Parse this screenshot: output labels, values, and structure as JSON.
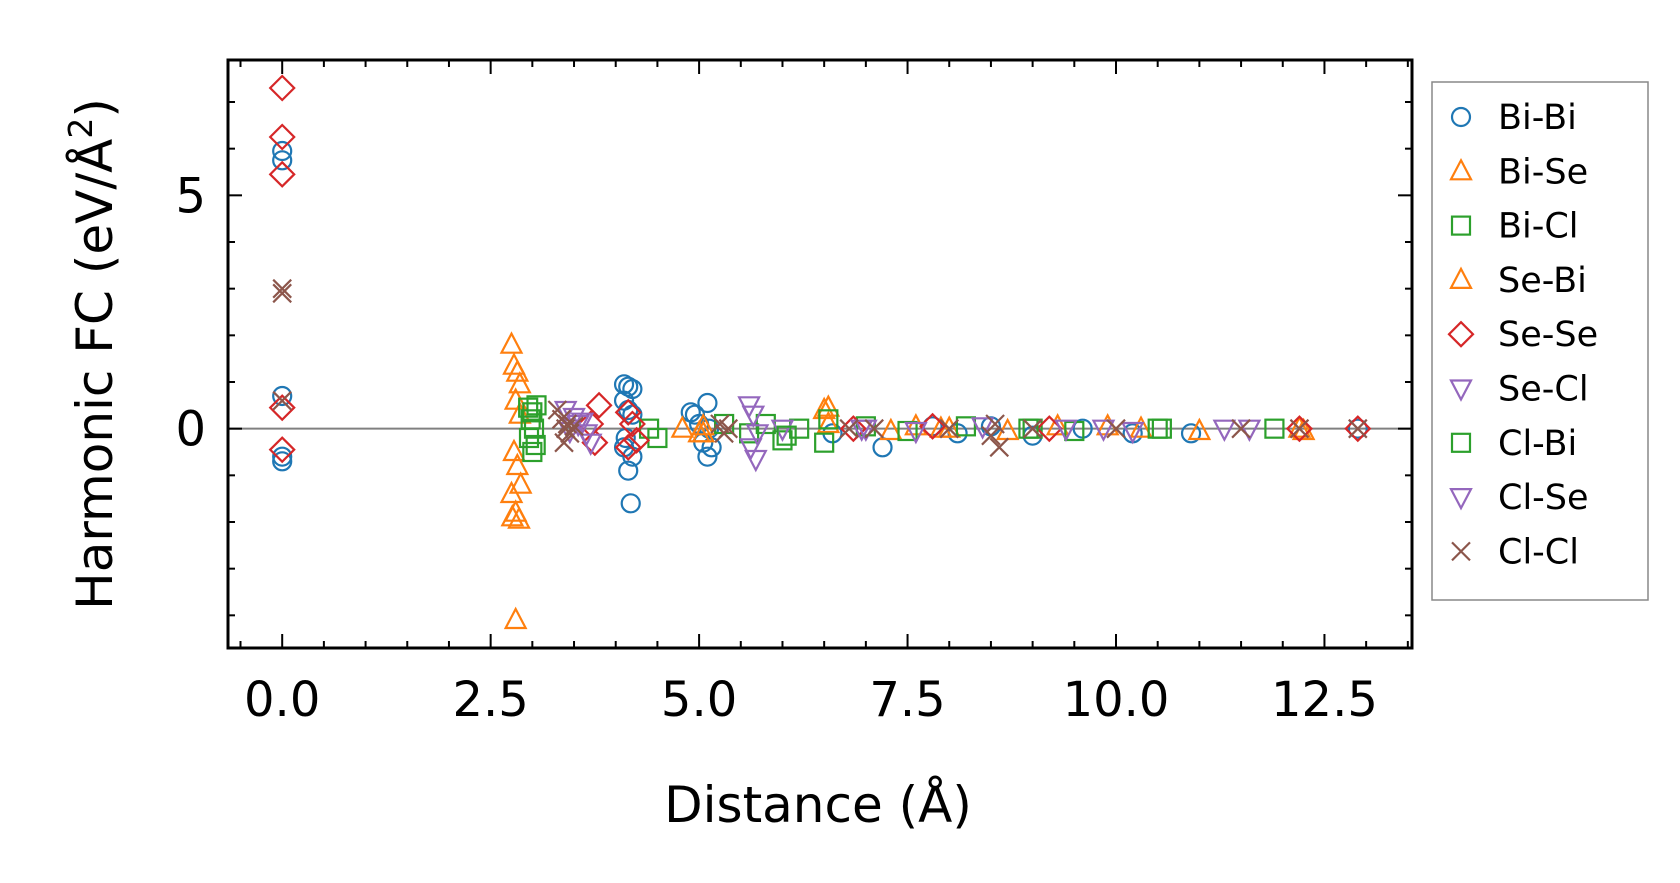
{
  "chart_data": {
    "type": "scatter",
    "xlabel": "Distance (Å)",
    "ylabel": {
      "main": "Harmonic FC (eV/Å",
      "sup": "2",
      "close": ")"
    },
    "xlim": [
      -0.65,
      13.55
    ],
    "ylim": [
      -4.7,
      7.9
    ],
    "xticks": [
      0.0,
      2.5,
      5.0,
      7.5,
      10.0,
      12.5
    ],
    "xtick_labels": [
      "0.0",
      "2.5",
      "5.0",
      "7.5",
      "10.0",
      "12.5"
    ],
    "yticks": [
      0,
      5
    ],
    "ytick_labels": [
      "0",
      "5"
    ],
    "reference_line_y": 0,
    "legend_position": "outside-right",
    "series": [
      {
        "name": "Bi-Bi",
        "marker": "circle",
        "color": "#1f77b4",
        "x": [
          0,
          0,
          0,
          0,
          0,
          4.1,
          4.15,
          4.2,
          4.1,
          4.15,
          4.2,
          4.1,
          4.2,
          4.15,
          4.12,
          4.18,
          4.9,
          4.95,
          5.0,
          5.1,
          5.15,
          5.1,
          5.05,
          5.12,
          6.6,
          7.2,
          7.8,
          8.1,
          8.5,
          9.0,
          9.6,
          10.2,
          10.9,
          12.9
        ],
        "y": [
          5.95,
          5.75,
          0.7,
          -0.7,
          -0.6,
          0.95,
          0.9,
          0.85,
          0.6,
          0.4,
          0.3,
          -0.4,
          -0.6,
          -0.9,
          -0.2,
          -1.6,
          0.35,
          0.3,
          0.1,
          0.55,
          -0.4,
          -0.6,
          -0.3,
          0.0,
          -0.1,
          -0.4,
          0.05,
          -0.1,
          0.05,
          -0.15,
          0.0,
          -0.1,
          -0.1,
          0.0
        ]
      },
      {
        "name": "Bi-Se",
        "marker": "triangle-up",
        "color": "#ff7f0e",
        "x": [
          2.75,
          2.78,
          2.82,
          2.85,
          2.8,
          2.85,
          2.78,
          2.82,
          2.86,
          2.75,
          2.8,
          2.76,
          2.84,
          2.8,
          4.8,
          5.0,
          5.05,
          6.5,
          6.55,
          7.3,
          7.6,
          8.0,
          8.7,
          9.3,
          10.3,
          11.0,
          12.2
        ],
        "y": [
          1.8,
          1.35,
          1.2,
          0.95,
          0.6,
          0.3,
          -0.5,
          -0.8,
          -1.2,
          -1.4,
          -1.8,
          -1.9,
          -1.95,
          -4.1,
          0.0,
          -0.1,
          0.05,
          0.4,
          0.1,
          -0.05,
          0.05,
          0.0,
          -0.05,
          0.05,
          0.0,
          -0.05,
          0.0
        ]
      },
      {
        "name": "Bi-Cl",
        "marker": "square",
        "color": "#2ca02c",
        "x": [
          2.95,
          3.0,
          3.05,
          2.98,
          3.02,
          2.96,
          3.04,
          3.0,
          4.4,
          4.5,
          5.3,
          5.6,
          5.8,
          6.0,
          6.2,
          6.5,
          7.0,
          7.5,
          8.2,
          9.0,
          9.5,
          10.5,
          11.9
        ],
        "y": [
          0.45,
          0.35,
          0.5,
          0.2,
          0.0,
          -0.2,
          -0.35,
          -0.5,
          0.0,
          -0.2,
          0.1,
          -0.1,
          0.1,
          -0.25,
          0.0,
          -0.3,
          0.05,
          -0.05,
          0.05,
          0.0,
          -0.05,
          0.0,
          0.0
        ]
      },
      {
        "name": "Se-Bi",
        "marker": "triangle-up",
        "color": "#ff7f0e",
        "x": [
          6.55,
          5.05,
          7.9,
          9.9,
          12.25
        ],
        "y": [
          0.45,
          -0.1,
          0.0,
          0.05,
          -0.05
        ]
      },
      {
        "name": "Se-Se",
        "marker": "diamond",
        "color": "#d62728",
        "x": [
          0,
          0,
          0,
          0,
          0,
          3.7,
          3.75,
          3.8,
          4.15,
          4.2,
          4.25,
          4.15,
          6.85,
          7.8,
          9.2,
          12.2,
          12.9
        ],
        "y": [
          7.3,
          6.25,
          5.45,
          0.45,
          -0.45,
          0.1,
          -0.3,
          0.5,
          0.35,
          0.1,
          -0.25,
          -0.4,
          0.0,
          0.05,
          0.0,
          0.0,
          0.0
        ]
      },
      {
        "name": "Se-Cl",
        "marker": "triangle-down",
        "color": "#9467bd",
        "x": [
          3.4,
          3.5,
          3.6,
          3.65,
          3.7,
          3.55,
          5.6,
          5.65,
          5.7,
          5.62,
          5.68,
          6.0,
          7.0,
          7.6,
          8.4,
          9.4,
          10.2,
          11.3
        ],
        "y": [
          0.4,
          0.25,
          0.15,
          -0.1,
          -0.3,
          0.1,
          0.5,
          0.3,
          -0.1,
          -0.4,
          -0.65,
          0.0,
          0.0,
          -0.05,
          0.05,
          0.0,
          -0.05,
          0.0
        ]
      },
      {
        "name": "Cl-Bi",
        "marker": "square",
        "color": "#2ca02c",
        "x": [
          6.05,
          6.55,
          8.95,
          10.55
        ],
        "y": [
          -0.15,
          0.2,
          0.0,
          0.0
        ]
      },
      {
        "name": "Cl-Se",
        "marker": "triangle-down",
        "color": "#9467bd",
        "x": [
          3.45,
          6.95,
          9.85,
          11.6
        ],
        "y": [
          -0.05,
          0.0,
          0.0,
          0.0
        ]
      },
      {
        "name": "Cl-Cl",
        "marker": "x",
        "color": "#8c564b",
        "x": [
          0,
          0,
          0,
          3.3,
          3.35,
          3.4,
          3.45,
          3.38,
          3.42,
          3.5,
          5.25,
          5.3,
          5.35,
          6.8,
          7.1,
          8.0,
          8.5,
          8.6,
          8.55,
          9.0,
          10.0,
          11.5,
          12.2,
          12.9
        ],
        "y": [
          3.0,
          2.9,
          0.6,
          0.4,
          0.2,
          0.0,
          -0.1,
          -0.3,
          0.1,
          0.05,
          0.1,
          -0.1,
          0.0,
          0.0,
          0.0,
          0.0,
          -0.15,
          -0.4,
          0.1,
          0.0,
          0.0,
          0.0,
          0.0,
          0.0
        ]
      }
    ]
  }
}
